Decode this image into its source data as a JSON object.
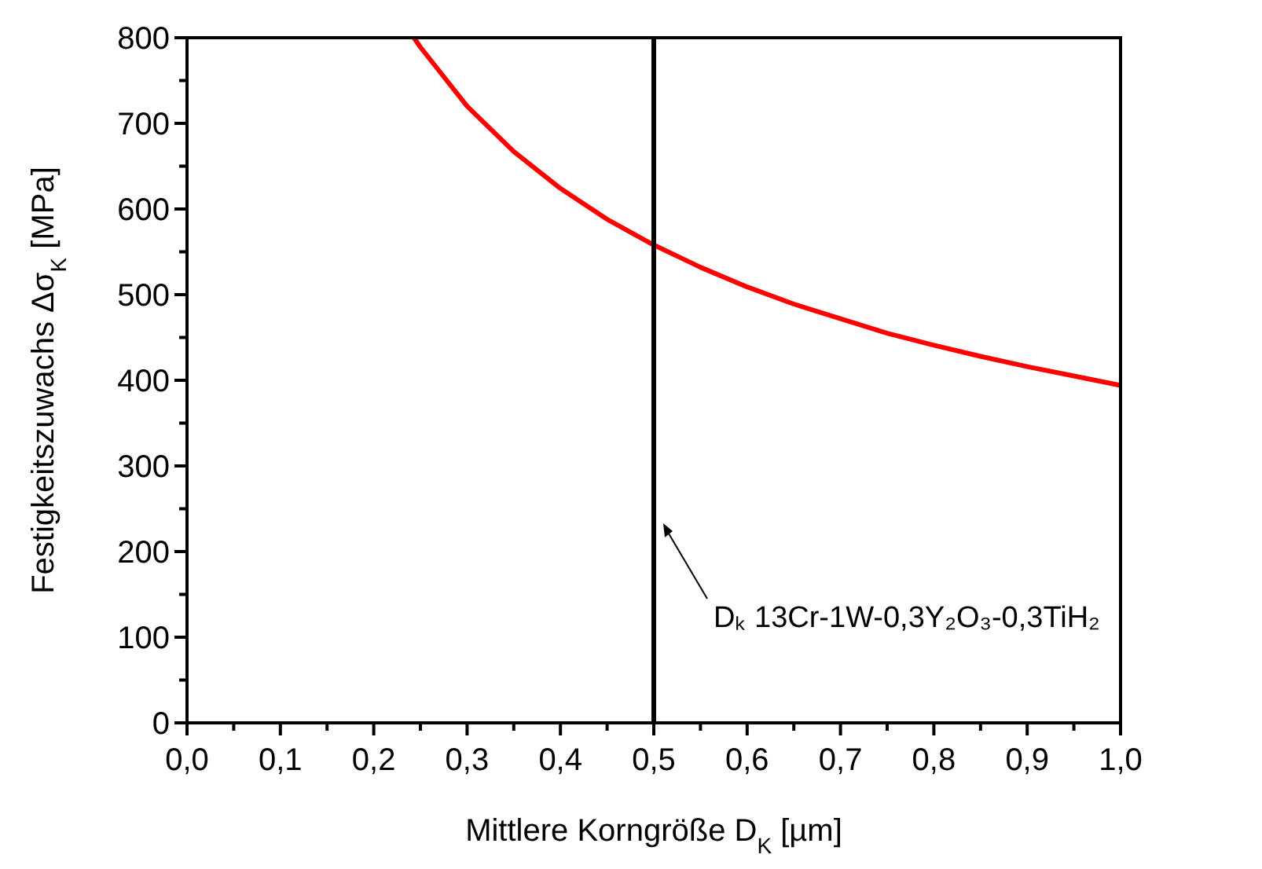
{
  "chart_data": {
    "type": "line",
    "xlabel": "Mittlere Korngröße D$_{K}$ [µm]",
    "ylabel": "Festigkeitszuwachs Δσ$_{K}$  [MPa]",
    "x": [
      0.243,
      0.25,
      0.3,
      0.35,
      0.4,
      0.45,
      0.5,
      0.55,
      0.6,
      0.65,
      0.7,
      0.75,
      0.8,
      0.85,
      0.9,
      0.95,
      1.0
    ],
    "series": [
      {
        "color": "#ff0000",
        "values": [
          800,
          789,
          720,
          667,
          624,
          588,
          558,
          532,
          509,
          489,
          472,
          455,
          441,
          428,
          416,
          405,
          394
        ]
      }
    ],
    "xlim": [
      0,
      1
    ],
    "ylim": [
      0,
      800
    ],
    "xticks": [
      {
        "value": 0,
        "label": "0,0"
      },
      {
        "value": 0.05,
        "label": null
      },
      {
        "value": 0.1,
        "label": "0,1"
      },
      {
        "value": 0.15,
        "label": null
      },
      {
        "value": 0.2,
        "label": "0,2"
      },
      {
        "value": 0.25,
        "label": null
      },
      {
        "value": 0.3,
        "label": "0,3"
      },
      {
        "value": 0.35,
        "label": null
      },
      {
        "value": 0.4,
        "label": "0,4"
      },
      {
        "value": 0.45,
        "label": null
      },
      {
        "value": 0.5,
        "label": "0,5"
      },
      {
        "value": 0.55,
        "label": null
      },
      {
        "value": 0.6,
        "label": "0,6"
      },
      {
        "value": 0.65,
        "label": null
      },
      {
        "value": 0.7,
        "label": "0,7"
      },
      {
        "value": 0.75,
        "label": null
      },
      {
        "value": 0.8,
        "label": "0,8"
      },
      {
        "value": 0.85,
        "label": null
      },
      {
        "value": 0.9,
        "label": "0,9"
      },
      {
        "value": 0.95,
        "label": null
      },
      {
        "value": 1,
        "label": "1,0"
      }
    ],
    "yticks": [
      0,
      {
        "value": 50,
        "label": null
      },
      100,
      {
        "value": 150,
        "label": null
      },
      200,
      {
        "value": 250,
        "label": null
      },
      300,
      {
        "value": 350,
        "label": null
      },
      400,
      {
        "value": 450,
        "label": null
      },
      500,
      {
        "value": 550,
        "label": null
      },
      600,
      {
        "value": 650,
        "label": null
      },
      700,
      {
        "value": 750,
        "label": null
      },
      800
    ],
    "ref_lines": [
      {
        "axis": "x",
        "value": 0.5,
        "label": "Dₖ 13Cr-1W-0,3Y₂O₃-0,3TiH₂",
        "color": "#000000"
      }
    ],
    "grid": false,
    "marker": "none",
    "line_style": "solid"
  }
}
